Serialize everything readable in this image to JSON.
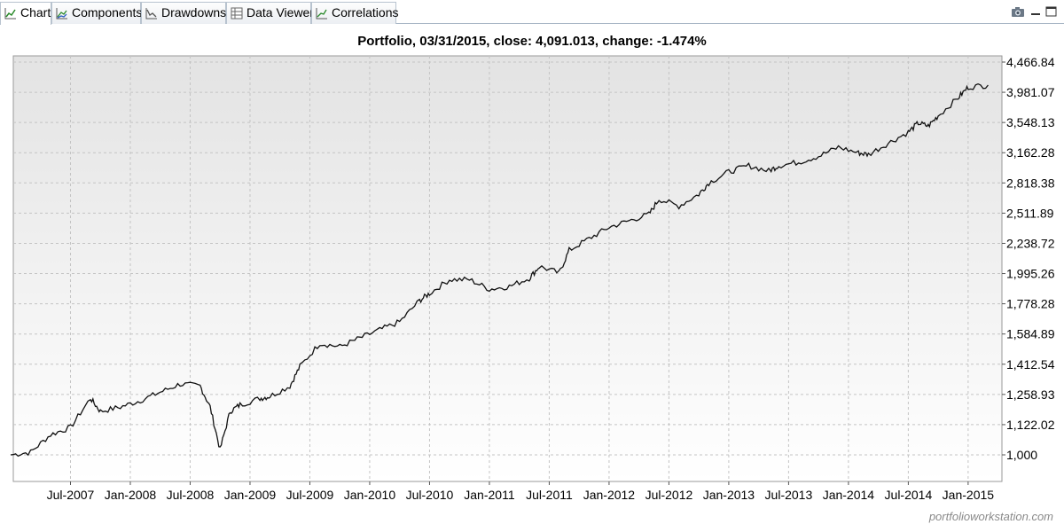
{
  "tabs": [
    {
      "label": "Chart",
      "icon": "line-chart-icon",
      "active": true
    },
    {
      "label": "Components",
      "icon": "components-chart-icon",
      "active": false
    },
    {
      "label": "Drawdowns",
      "icon": "drawdown-chart-icon",
      "active": false
    },
    {
      "label": "Data Viewer",
      "icon": "table-icon",
      "active": false
    },
    {
      "label": "Correlations",
      "icon": "correlation-icon",
      "active": false
    }
  ],
  "window_controls": [
    "camera-icon",
    "minimize-icon",
    "maximize-icon"
  ],
  "chart_data": {
    "type": "line",
    "title": "Portfolio, 03/31/2015, close: 4,091.013, change: -1.474%",
    "yscale": "log",
    "grid": true,
    "y_tick_labels": [
      "4,466.84",
      "3,981.07",
      "3,548.13",
      "3,162.28",
      "2,818.38",
      "2,511.89",
      "2,238.72",
      "1,995.26",
      "1,778.28",
      "1,584.89",
      "1,412.54",
      "1,258.93",
      "1,122.02",
      "1,000"
    ],
    "x_tick_labels": [
      "Jul-2007",
      "Jan-2008",
      "Jul-2008",
      "Jan-2009",
      "Jul-2009",
      "Jan-2010",
      "Jul-2010",
      "Jan-2011",
      "Jul-2011",
      "Jan-2012",
      "Jul-2012",
      "Jan-2013",
      "Jul-2013",
      "Jan-2014",
      "Jul-2014",
      "Jan-2015"
    ],
    "series": [
      {
        "x": [
          "2007-01",
          "2007-03",
          "2007-05",
          "2007-07",
          "2007-09",
          "2007-10",
          "2007-12",
          "2008-02",
          "2008-04",
          "2008-06",
          "2008-08",
          "2008-09",
          "2008-10",
          "2008-11",
          "2008-12",
          "2009-02",
          "2009-03",
          "2009-05",
          "2009-06",
          "2009-08",
          "2009-10",
          "2009-12",
          "2010-02",
          "2010-04",
          "2010-06",
          "2010-07",
          "2010-09",
          "2010-11",
          "2011-01",
          "2011-03",
          "2011-05",
          "2011-06",
          "2011-08",
          "2011-09",
          "2011-11",
          "2012-01",
          "2012-03",
          "2012-05",
          "2012-06",
          "2012-08",
          "2012-10",
          "2012-11",
          "2013-01",
          "2013-03",
          "2013-05",
          "2013-06",
          "2013-08",
          "2013-10",
          "2013-12",
          "2014-02",
          "2014-03",
          "2014-05",
          "2014-07",
          "2014-08",
          "2014-09",
          "2014-10",
          "2014-12",
          "2015-01",
          "2015-03"
        ],
        "values": [
          1000,
          1010,
          1080,
          1110,
          1240,
          1180,
          1200,
          1230,
          1270,
          1310,
          1300,
          1200,
          1020,
          1180,
          1210,
          1240,
          1250,
          1300,
          1400,
          1530,
          1510,
          1560,
          1610,
          1660,
          1800,
          1850,
          1950,
          1950,
          1880,
          1900,
          1960,
          2050,
          2000,
          2180,
          2280,
          2380,
          2440,
          2500,
          2650,
          2580,
          2700,
          2820,
          2940,
          3010,
          2950,
          3010,
          3050,
          3120,
          3230,
          3160,
          3140,
          3280,
          3420,
          3540,
          3500,
          3640,
          3900,
          4060,
          4091
        ]
      }
    ]
  },
  "footer": {
    "watermark": "portfolioworkstation.com"
  }
}
